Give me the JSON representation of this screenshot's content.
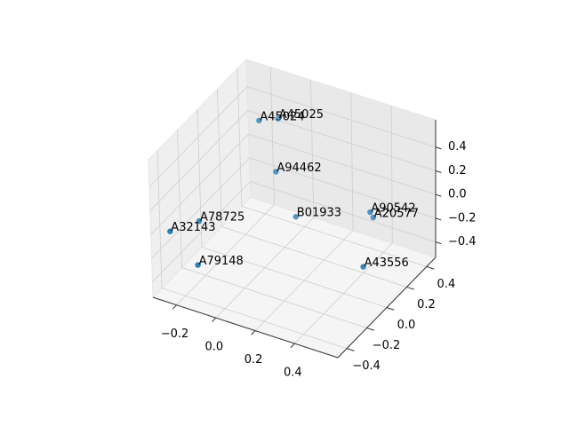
{
  "chart_data": {
    "type": "scatter3d",
    "labels": [
      "A45024",
      "A45025",
      "A94462",
      "B01933",
      "A90542",
      "A20577",
      "A43556",
      "A78725",
      "A32143",
      "A79148"
    ],
    "x": [
      -0.1,
      -0.035,
      -0.026,
      0.06,
      0.355,
      0.36,
      0.43,
      -0.24,
      -0.29,
      -0.19
    ],
    "y": [
      0.17,
      0.23,
      0.18,
      0.2,
      0.36,
      0.38,
      0.14,
      -0.17,
      -0.36,
      -0.29
    ],
    "z": [
      0.51,
      0.51,
      0.11,
      -0.24,
      -0.18,
      -0.24,
      -0.41,
      -0.12,
      -0.07,
      -0.36
    ],
    "color": "#1f77b4",
    "xlim": [
      -0.32,
      0.62
    ],
    "ylim": [
      -0.49,
      0.49
    ],
    "zlim": [
      -0.53,
      0.63
    ],
    "xticks": [
      {
        "value": -0.2,
        "label": "−0.2"
      },
      {
        "value": 0,
        "label": "0.0"
      },
      0.2,
      0.4
    ],
    "yticks": [
      {
        "value": -0.4,
        "label": "−0.4"
      },
      {
        "value": -0.2,
        "label": "−0.2"
      },
      {
        "value": 0,
        "label": "0.0"
      },
      0.2,
      0.4
    ],
    "zticks": [
      {
        "value": -0.4,
        "label": "−0.4"
      },
      {
        "value": -0.2,
        "label": "−0.2"
      },
      {
        "value": 0,
        "label": "0.0"
      },
      0.2,
      0.4
    ],
    "grid": true
  }
}
